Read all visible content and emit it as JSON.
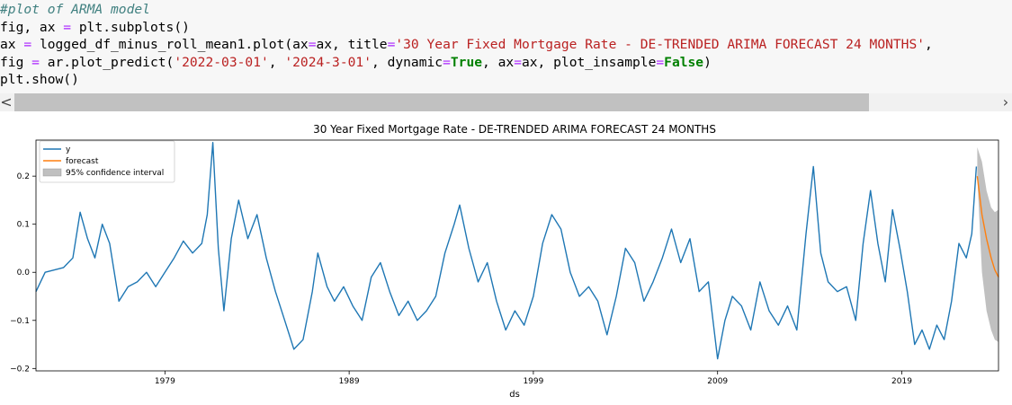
{
  "code_cell": {
    "lines": [
      [
        {
          "t": "#plot of ARMA model",
          "c": "comment"
        }
      ],
      [
        {
          "t": "fig, ax ",
          "c": ""
        },
        {
          "t": "=",
          "c": "op"
        },
        {
          "t": " plt.subplots()",
          "c": ""
        }
      ],
      [
        {
          "t": "ax ",
          "c": ""
        },
        {
          "t": "=",
          "c": "op"
        },
        {
          "t": " logged_df_minus_roll_mean1.plot(ax",
          "c": ""
        },
        {
          "t": "=",
          "c": "op"
        },
        {
          "t": "ax, title",
          "c": ""
        },
        {
          "t": "=",
          "c": "op"
        },
        {
          "t": "'30 Year Fixed Mortgage Rate - DE-TRENDED ARIMA FORECAST 24 MONTHS'",
          "c": "string"
        },
        {
          "t": ",",
          "c": ""
        }
      ],
      [
        {
          "t": "fig ",
          "c": ""
        },
        {
          "t": "=",
          "c": "op"
        },
        {
          "t": " ar.plot_predict(",
          "c": ""
        },
        {
          "t": "'2022-03-01'",
          "c": "string"
        },
        {
          "t": ", ",
          "c": ""
        },
        {
          "t": "'2024-3-01'",
          "c": "string"
        },
        {
          "t": ", dynamic",
          "c": ""
        },
        {
          "t": "=",
          "c": "op"
        },
        {
          "t": "True",
          "c": "kw"
        },
        {
          "t": ", ax",
          "c": ""
        },
        {
          "t": "=",
          "c": "op"
        },
        {
          "t": "ax, plot_insample",
          "c": ""
        },
        {
          "t": "=",
          "c": "op"
        },
        {
          "t": "False",
          "c": "kw"
        },
        {
          "t": ")",
          "c": ""
        }
      ],
      [
        {
          "t": "plt.show()",
          "c": ""
        }
      ]
    ]
  },
  "scrollbar": {
    "left_arrow": "<",
    "right_arrow": "›"
  },
  "colors": {
    "series_y": "#1f77b4",
    "forecast": "#ff7f0e",
    "confidence": "#c0c0c0",
    "code_bg": "#f7f7f7"
  },
  "chart_data": {
    "type": "line",
    "title": "30 Year Fixed Mortgage Rate - DE-TRENDED ARIMA FORECAST 24 MONTHS",
    "xlabel": "ds",
    "ylabel": "",
    "xlim": [
      1972.0,
      2024.25
    ],
    "ylim": [
      -0.205,
      0.275
    ],
    "x_ticks": [
      1979,
      1989,
      1999,
      2009,
      2019
    ],
    "x_tick_labels": [
      "1979",
      "1989",
      "1999",
      "2009",
      "2019"
    ],
    "y_ticks": [
      -0.2,
      -0.1,
      0.0,
      0.1,
      0.2
    ],
    "y_tick_labels": [
      "−0.2",
      "−0.1",
      "0.0",
      "0.1",
      "0.2"
    ],
    "grid": false,
    "legend_position": "top-left",
    "legend": [
      "y",
      "forecast",
      "95% confidence interval"
    ],
    "series": [
      {
        "name": "y",
        "points": [
          [
            1972.0,
            -0.04
          ],
          [
            1972.5,
            0.0
          ],
          [
            1973.0,
            0.005
          ],
          [
            1973.5,
            0.01
          ],
          [
            1974.0,
            0.03
          ],
          [
            1974.4,
            0.125
          ],
          [
            1974.8,
            0.07
          ],
          [
            1975.2,
            0.03
          ],
          [
            1975.6,
            0.1
          ],
          [
            1976.0,
            0.06
          ],
          [
            1976.5,
            -0.06
          ],
          [
            1977.0,
            -0.03
          ],
          [
            1977.5,
            -0.02
          ],
          [
            1978.0,
            0.0
          ],
          [
            1978.5,
            -0.03
          ],
          [
            1979.0,
            0.0
          ],
          [
            1979.5,
            0.03
          ],
          [
            1980.0,
            0.065
          ],
          [
            1980.5,
            0.04
          ],
          [
            1981.0,
            0.06
          ],
          [
            1981.3,
            0.12
          ],
          [
            1981.6,
            0.27
          ],
          [
            1981.9,
            0.05
          ],
          [
            1982.2,
            -0.08
          ],
          [
            1982.6,
            0.07
          ],
          [
            1983.0,
            0.15
          ],
          [
            1983.5,
            0.07
          ],
          [
            1984.0,
            0.12
          ],
          [
            1984.5,
            0.03
          ],
          [
            1985.0,
            -0.04
          ],
          [
            1985.5,
            -0.1
          ],
          [
            1986.0,
            -0.16
          ],
          [
            1986.5,
            -0.14
          ],
          [
            1987.0,
            -0.04
          ],
          [
            1987.3,
            0.04
          ],
          [
            1987.8,
            -0.03
          ],
          [
            1988.2,
            -0.06
          ],
          [
            1988.7,
            -0.03
          ],
          [
            1989.2,
            -0.07
          ],
          [
            1989.7,
            -0.1
          ],
          [
            1990.2,
            -0.01
          ],
          [
            1990.7,
            0.02
          ],
          [
            1991.2,
            -0.04
          ],
          [
            1991.7,
            -0.09
          ],
          [
            1992.2,
            -0.06
          ],
          [
            1992.7,
            -0.1
          ],
          [
            1993.2,
            -0.08
          ],
          [
            1993.7,
            -0.05
          ],
          [
            1994.2,
            0.04
          ],
          [
            1994.7,
            0.1
          ],
          [
            1995.0,
            0.14
          ],
          [
            1995.5,
            0.05
          ],
          [
            1996.0,
            -0.02
          ],
          [
            1996.5,
            0.02
          ],
          [
            1997.0,
            -0.06
          ],
          [
            1997.5,
            -0.12
          ],
          [
            1998.0,
            -0.08
          ],
          [
            1998.5,
            -0.11
          ],
          [
            1999.0,
            -0.05
          ],
          [
            1999.5,
            0.06
          ],
          [
            2000.0,
            0.12
          ],
          [
            2000.5,
            0.09
          ],
          [
            2001.0,
            0.0
          ],
          [
            2001.5,
            -0.05
          ],
          [
            2002.0,
            -0.03
          ],
          [
            2002.5,
            -0.06
          ],
          [
            2003.0,
            -0.13
          ],
          [
            2003.5,
            -0.05
          ],
          [
            2004.0,
            0.05
          ],
          [
            2004.5,
            0.02
          ],
          [
            2005.0,
            -0.06
          ],
          [
            2005.5,
            -0.02
          ],
          [
            2006.0,
            0.03
          ],
          [
            2006.5,
            0.09
          ],
          [
            2007.0,
            0.02
          ],
          [
            2007.5,
            0.07
          ],
          [
            2008.0,
            -0.04
          ],
          [
            2008.5,
            -0.02
          ],
          [
            2009.0,
            -0.18
          ],
          [
            2009.4,
            -0.1
          ],
          [
            2009.8,
            -0.05
          ],
          [
            2010.3,
            -0.07
          ],
          [
            2010.8,
            -0.12
          ],
          [
            2011.3,
            -0.02
          ],
          [
            2011.8,
            -0.08
          ],
          [
            2012.3,
            -0.11
          ],
          [
            2012.8,
            -0.07
          ],
          [
            2013.3,
            -0.12
          ],
          [
            2013.8,
            0.08
          ],
          [
            2014.2,
            0.22
          ],
          [
            2014.6,
            0.04
          ],
          [
            2015.0,
            -0.02
          ],
          [
            2015.5,
            -0.04
          ],
          [
            2016.0,
            -0.03
          ],
          [
            2016.5,
            -0.1
          ],
          [
            2016.9,
            0.06
          ],
          [
            2017.3,
            0.17
          ],
          [
            2017.7,
            0.06
          ],
          [
            2018.1,
            -0.02
          ],
          [
            2018.5,
            0.13
          ],
          [
            2018.9,
            0.05
          ],
          [
            2019.3,
            -0.04
          ],
          [
            2019.7,
            -0.15
          ],
          [
            2020.1,
            -0.12
          ],
          [
            2020.5,
            -0.16
          ],
          [
            2020.9,
            -0.11
          ],
          [
            2021.3,
            -0.14
          ],
          [
            2021.7,
            -0.06
          ],
          [
            2022.1,
            0.06
          ],
          [
            2022.5,
            0.03
          ],
          [
            2022.8,
            0.08
          ],
          [
            2023.05,
            0.22
          ]
        ]
      },
      {
        "name": "forecast",
        "points": [
          [
            2023.1,
            0.2
          ],
          [
            2023.35,
            0.12
          ],
          [
            2023.6,
            0.07
          ],
          [
            2023.85,
            0.03
          ],
          [
            2024.05,
            0.005
          ],
          [
            2024.25,
            -0.01
          ]
        ]
      }
    ],
    "confidence_band": {
      "name": "95% confidence interval",
      "x": [
        2023.1,
        2023.35,
        2023.6,
        2023.85,
        2024.05,
        2024.25
      ],
      "upper": [
        0.26,
        0.23,
        0.17,
        0.135,
        0.125,
        0.13
      ],
      "lower": [
        0.2,
        0.0,
        -0.08,
        -0.12,
        -0.14,
        -0.145
      ]
    }
  }
}
